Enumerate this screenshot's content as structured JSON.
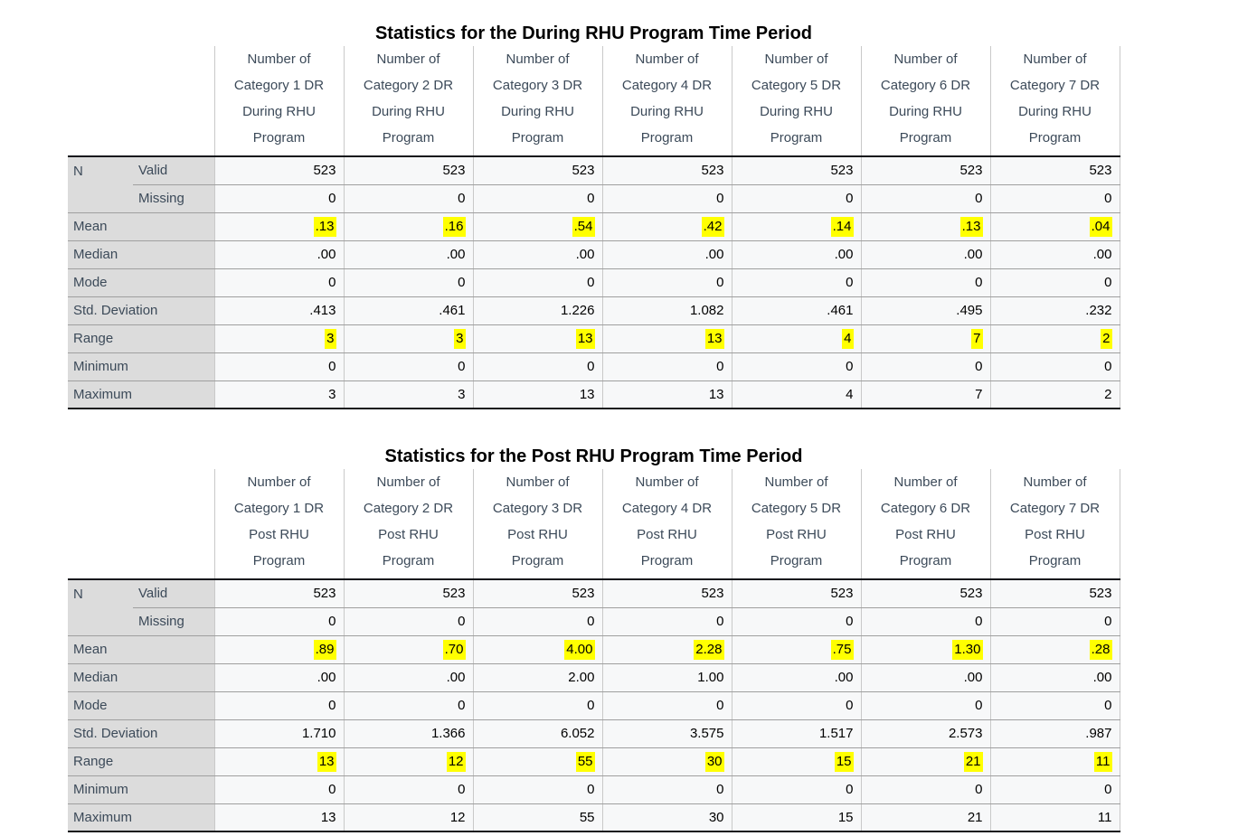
{
  "tables": [
    {
      "title": "Statistics for the During RHU Program Time Period",
      "columns": [
        [
          "Number of",
          "Category 1 DR",
          "During RHU",
          "Program"
        ],
        [
          "Number of",
          "Category 2 DR",
          "During RHU",
          "Program"
        ],
        [
          "Number of",
          "Category 3 DR",
          "During RHU",
          "Program"
        ],
        [
          "Number of",
          "Category 4 DR",
          "During RHU",
          "Program"
        ],
        [
          "Number of",
          "Category 5 DR",
          "During RHU",
          "Program"
        ],
        [
          "Number of",
          "Category 6 DR",
          "During RHU",
          "Program"
        ],
        [
          "Number of",
          "Category 7 DR",
          "During RHU",
          "Program"
        ]
      ],
      "rows": [
        {
          "group": "N",
          "label": "Valid",
          "values": [
            "523",
            "523",
            "523",
            "523",
            "523",
            "523",
            "523"
          ]
        },
        {
          "group": "",
          "label": "Missing",
          "values": [
            "0",
            "0",
            "0",
            "0",
            "0",
            "0",
            "0"
          ]
        },
        {
          "label": "Mean",
          "values": [
            ".13",
            ".16",
            ".54",
            ".42",
            ".14",
            ".13",
            ".04"
          ],
          "highlight": true
        },
        {
          "label": "Median",
          "values": [
            ".00",
            ".00",
            ".00",
            ".00",
            ".00",
            ".00",
            ".00"
          ]
        },
        {
          "label": "Mode",
          "values": [
            "0",
            "0",
            "0",
            "0",
            "0",
            "0",
            "0"
          ]
        },
        {
          "label": "Std. Deviation",
          "values": [
            ".413",
            ".461",
            "1.226",
            "1.082",
            ".461",
            ".495",
            ".232"
          ]
        },
        {
          "label": "Range",
          "values": [
            "3",
            "3",
            "13",
            "13",
            "4",
            "7",
            "2"
          ],
          "highlight": true
        },
        {
          "label": "Minimum",
          "values": [
            "0",
            "0",
            "0",
            "0",
            "0",
            "0",
            "0"
          ]
        },
        {
          "label": "Maximum",
          "values": [
            "3",
            "3",
            "13",
            "13",
            "4",
            "7",
            "2"
          ]
        }
      ]
    },
    {
      "title": "Statistics for the Post RHU Program Time Period",
      "columns": [
        [
          "Number of",
          "Category 1 DR",
          "Post RHU",
          "Program"
        ],
        [
          "Number of",
          "Category 2 DR",
          "Post RHU",
          "Program"
        ],
        [
          "Number of",
          "Category 3 DR",
          "Post RHU",
          "Program"
        ],
        [
          "Number of",
          "Category 4 DR",
          "Post RHU",
          "Program"
        ],
        [
          "Number of",
          "Category 5 DR",
          "Post RHU",
          "Program"
        ],
        [
          "Number of",
          "Category 6 DR",
          "Post RHU",
          "Program"
        ],
        [
          "Number of",
          "Category 7 DR",
          "Post RHU",
          "Program"
        ]
      ],
      "rows": [
        {
          "group": "N",
          "label": "Valid",
          "values": [
            "523",
            "523",
            "523",
            "523",
            "523",
            "523",
            "523"
          ]
        },
        {
          "group": "",
          "label": "Missing",
          "values": [
            "0",
            "0",
            "0",
            "0",
            "0",
            "0",
            "0"
          ]
        },
        {
          "label": "Mean",
          "values": [
            ".89",
            ".70",
            "4.00",
            "2.28",
            ".75",
            "1.30",
            ".28"
          ],
          "highlight": true
        },
        {
          "label": "Median",
          "values": [
            ".00",
            ".00",
            "2.00",
            "1.00",
            ".00",
            ".00",
            ".00"
          ]
        },
        {
          "label": "Mode",
          "values": [
            "0",
            "0",
            "0",
            "0",
            "0",
            "0",
            "0"
          ]
        },
        {
          "label": "Std. Deviation",
          "values": [
            "1.710",
            "1.366",
            "6.052",
            "3.575",
            "1.517",
            "2.573",
            ".987"
          ]
        },
        {
          "label": "Range",
          "values": [
            "13",
            "12",
            "55",
            "30",
            "15",
            "21",
            "11"
          ],
          "highlight": true
        },
        {
          "label": "Minimum",
          "values": [
            "0",
            "0",
            "0",
            "0",
            "0",
            "0",
            "0"
          ]
        },
        {
          "label": "Maximum",
          "values": [
            "13",
            "12",
            "55",
            "30",
            "15",
            "21",
            "11"
          ]
        }
      ]
    }
  ],
  "highlight_color": "#ffff00"
}
